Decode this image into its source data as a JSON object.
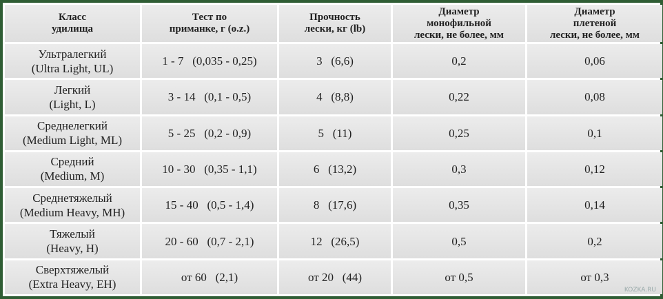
{
  "table": {
    "header": [
      [
        "Класс",
        "удилища"
      ],
      [
        "Тест по",
        "приманке, г (o.z.)"
      ],
      [
        "Прочность",
        "лески, кг (lb)"
      ],
      [
        "Диаметр",
        "монофильной",
        "лески, не более, мм"
      ],
      [
        "Диаметр",
        "плетеной",
        "лески, не более, мм"
      ]
    ],
    "rows": [
      [
        [
          "Ультралегкий",
          "(Ultra Light, UL)"
        ],
        "1 - 7   (0,035 - 0,25)",
        "3   (6,6)",
        "0,2",
        "0,06"
      ],
      [
        [
          "Легкий",
          "(Light, L)"
        ],
        "3 - 14   (0,1 - 0,5)",
        "4   (8,8)",
        "0,22",
        "0,08"
      ],
      [
        [
          "Среднелегкий",
          "(Medium Light, ML)"
        ],
        "5 - 25   (0,2 - 0,9)",
        "5   (11)",
        "0,25",
        "0,1"
      ],
      [
        [
          "Средний",
          "(Medium, M)"
        ],
        "10 - 30   (0,35 - 1,1)",
        "6   (13,2)",
        "0,3",
        "0,12"
      ],
      [
        [
          "Среднетяжелый",
          "(Medium Heavy, MH)"
        ],
        "15 - 40   (0,5 - 1,4)",
        "8   (17,6)",
        "0,35",
        "0,14"
      ],
      [
        [
          "Тяжелый",
          "(Heavy, H)"
        ],
        "20 - 60   (0,7 - 2,1)",
        "12   (26,5)",
        "0,5",
        "0,2"
      ],
      [
        [
          "Сверхтяжелый",
          "(Extra Heavy, EH)"
        ],
        "от 60   (2,1)",
        "от 20   (44)",
        "от 0,5",
        "от 0,3"
      ]
    ]
  },
  "watermark": "KOZKA.RU"
}
